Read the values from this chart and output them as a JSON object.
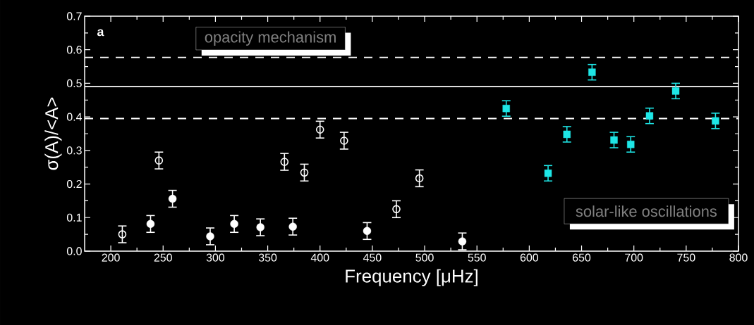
{
  "chart_data": {
    "type": "scatter",
    "xlabel": "Frequency [μHz]",
    "ylabel": "σ(A)/<A>",
    "xlim": [
      175,
      800
    ],
    "ylim": [
      0,
      0.7
    ],
    "xticks": [
      200,
      250,
      300,
      350,
      400,
      450,
      500,
      550,
      600,
      650,
      700,
      750,
      800
    ],
    "yticks": [
      {
        "value": 0,
        "label": "0.0"
      },
      {
        "value": 0.1,
        "label": "0.1"
      },
      {
        "value": 0.2,
        "label": "0.2"
      },
      {
        "value": 0.3,
        "label": "0.3"
      },
      {
        "value": 0.4,
        "label": "0.4"
      },
      {
        "value": 0.5,
        "label": "0.5"
      },
      {
        "value": 0.6,
        "label": "0.6"
      },
      {
        "value": 0.7,
        "label": "0.7"
      }
    ],
    "grid": false,
    "series": [
      {
        "color": "#ffffff",
        "marker": "circle-open",
        "x": [
          211,
          246,
          366,
          385,
          400,
          423,
          473,
          495
        ],
        "values": [
          0.05,
          0.27,
          0.266,
          0.234,
          0.362,
          0.329,
          0.125,
          0.217
        ],
        "errors": [
          0.025,
          0.025,
          0.025,
          0.025,
          0.025,
          0.025,
          0.025,
          0.025
        ]
      },
      {
        "color": "#ffffff",
        "marker": "circle",
        "x": [
          238,
          259,
          295,
          318,
          343,
          374,
          445,
          536
        ],
        "values": [
          0.081,
          0.156,
          0.044,
          0.081,
          0.071,
          0.073,
          0.06,
          0.029
        ],
        "errors": [
          0.025,
          0.025,
          0.025,
          0.025,
          0.025,
          0.025,
          0.025,
          0.025
        ]
      },
      {
        "color": "#1ee6e6",
        "marker": "square",
        "x": [
          578,
          618,
          636,
          660,
          681,
          697,
          715,
          740,
          778
        ],
        "values": [
          0.425,
          0.232,
          0.348,
          0.533,
          0.331,
          0.318,
          0.403,
          0.477,
          0.388
        ],
        "errors": [
          0.023,
          0.023,
          0.023,
          0.023,
          0.023,
          0.023,
          0.023,
          0.023,
          0.023
        ]
      }
    ],
    "ref_lines": [
      {
        "axis": "y",
        "value": 0.49,
        "line_style": "solid",
        "color": "#ffffff"
      },
      {
        "axis": "y",
        "value": 0.577,
        "line_style": "dashed",
        "color": "#ffffff"
      },
      {
        "axis": "y",
        "value": 0.395,
        "line_style": "dashed",
        "color": "#ffffff"
      }
    ],
    "annotations": [
      "a",
      "opacity mechanism",
      "solar-like oscillations"
    ]
  }
}
